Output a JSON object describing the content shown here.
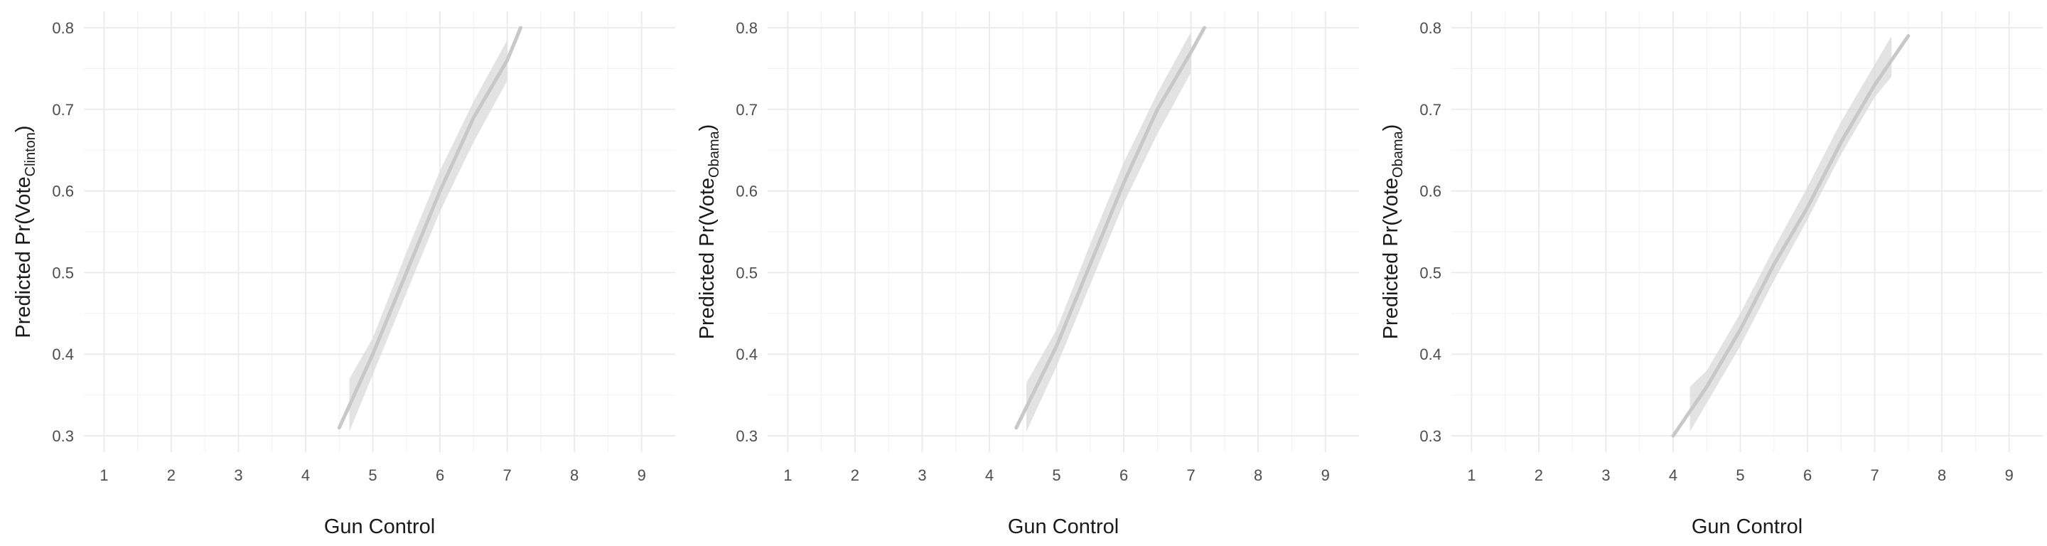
{
  "chart_data": [
    {
      "type": "line",
      "xlabel": "Gun Control",
      "ylabel_main": "Predicted Pr(Vote",
      "ylabel_sub": "Clinton",
      "ylabel_close": ")",
      "xlim": [
        0.7,
        9.5
      ],
      "ylim": [
        0.28,
        0.82
      ],
      "x_ticks": [
        1,
        2,
        3,
        4,
        5,
        6,
        7,
        8,
        9
      ],
      "y_ticks": [
        0.3,
        0.4,
        0.5,
        0.6,
        0.7,
        0.8
      ],
      "x_tick_labels": [
        "1",
        "2",
        "3",
        "4",
        "5",
        "6",
        "7",
        "8",
        "9"
      ],
      "y_tick_labels": [
        "0.3",
        "0.4",
        "0.5",
        "0.6",
        "0.7",
        "0.8"
      ],
      "grid": true,
      "colors": {
        "line": "#c8c8c8",
        "band": "#d9d9d9",
        "grid": "#ebebeb"
      },
      "series": [
        {
          "x": [
            4.5,
            5.0,
            5.5,
            6.0,
            6.5,
            7.0,
            7.2
          ],
          "y": [
            0.31,
            0.4,
            0.5,
            0.6,
            0.69,
            0.76,
            0.8
          ]
        }
      ],
      "band": {
        "x": [
          4.65,
          5.0,
          5.5,
          6.0,
          6.5,
          7.0
        ],
        "lower": [
          0.305,
          0.375,
          0.475,
          0.575,
          0.66,
          0.735
        ],
        "upper": [
          0.37,
          0.42,
          0.525,
          0.625,
          0.71,
          0.785
        ]
      }
    },
    {
      "type": "line",
      "xlabel": "Gun Control",
      "ylabel_main": "Predicted Pr(Vote",
      "ylabel_sub": "Obama",
      "ylabel_close": ")",
      "xlim": [
        0.7,
        9.5
      ],
      "ylim": [
        0.28,
        0.82
      ],
      "x_ticks": [
        1,
        2,
        3,
        4,
        5,
        6,
        7,
        8,
        9
      ],
      "y_ticks": [
        0.3,
        0.4,
        0.5,
        0.6,
        0.7,
        0.8
      ],
      "x_tick_labels": [
        "1",
        "2",
        "3",
        "4",
        "5",
        "6",
        "7",
        "8",
        "9"
      ],
      "y_tick_labels": [
        "0.3",
        "0.4",
        "0.5",
        "0.6",
        "0.7",
        "0.8"
      ],
      "grid": true,
      "colors": {
        "line": "#c8c8c8",
        "band": "#d9d9d9",
        "grid": "#ebebeb"
      },
      "series": [
        {
          "x": [
            4.4,
            5.0,
            5.5,
            6.0,
            6.5,
            7.0,
            7.2
          ],
          "y": [
            0.31,
            0.41,
            0.51,
            0.61,
            0.7,
            0.77,
            0.8
          ]
        }
      ],
      "band": {
        "x": [
          4.55,
          5.0,
          5.5,
          6.0,
          6.5,
          7.0
        ],
        "lower": [
          0.305,
          0.385,
          0.485,
          0.585,
          0.67,
          0.745
        ],
        "upper": [
          0.365,
          0.43,
          0.535,
          0.635,
          0.72,
          0.795
        ]
      }
    },
    {
      "type": "line",
      "xlabel": "Gun Control",
      "ylabel_main": "Predicted Pr(Vote",
      "ylabel_sub": "Obama",
      "ylabel_close": ")",
      "xlim": [
        0.7,
        9.5
      ],
      "ylim": [
        0.28,
        0.82
      ],
      "x_ticks": [
        1,
        2,
        3,
        4,
        5,
        6,
        7,
        8,
        9
      ],
      "y_ticks": [
        0.3,
        0.4,
        0.5,
        0.6,
        0.7,
        0.8
      ],
      "x_tick_labels": [
        "1",
        "2",
        "3",
        "4",
        "5",
        "6",
        "7",
        "8",
        "9"
      ],
      "y_tick_labels": [
        "0.3",
        "0.4",
        "0.5",
        "0.6",
        "0.7",
        "0.8"
      ],
      "grid": true,
      "colors": {
        "line": "#c8c8c8",
        "band": "#d9d9d9",
        "grid": "#ebebeb"
      },
      "series": [
        {
          "x": [
            4.0,
            4.5,
            5.0,
            5.5,
            6.0,
            6.5,
            7.0,
            7.5
          ],
          "y": [
            0.3,
            0.36,
            0.43,
            0.51,
            0.58,
            0.66,
            0.73,
            0.79
          ]
        }
      ],
      "band": {
        "x": [
          4.25,
          4.5,
          5.0,
          5.5,
          6.0,
          6.5,
          7.0,
          7.25
        ],
        "lower": [
          0.305,
          0.34,
          0.41,
          0.49,
          0.565,
          0.645,
          0.715,
          0.74
        ],
        "upper": [
          0.36,
          0.38,
          0.45,
          0.53,
          0.605,
          0.685,
          0.755,
          0.79
        ]
      }
    }
  ]
}
